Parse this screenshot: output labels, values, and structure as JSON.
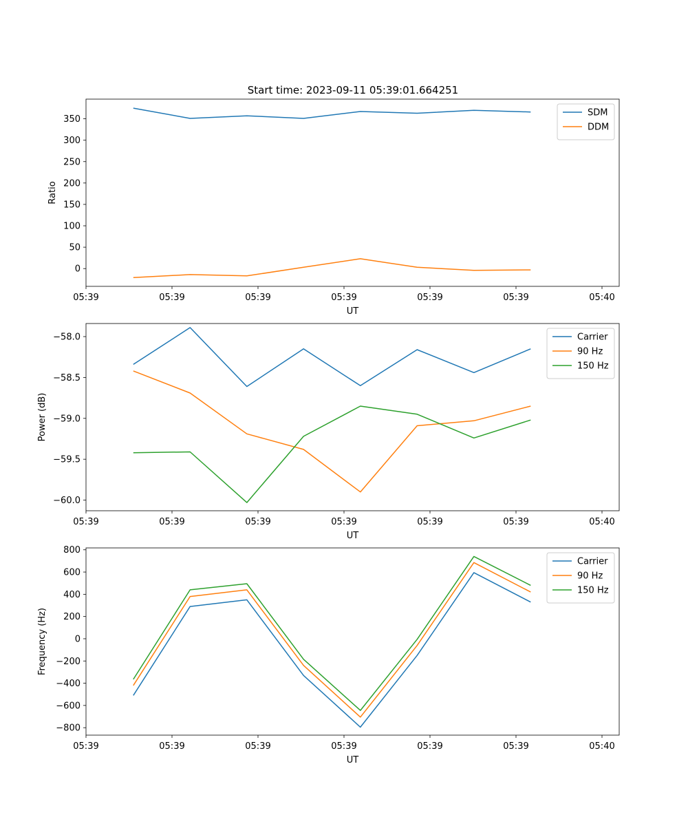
{
  "figure_title": "Start time: 2023-09-11 05:39:01.664251",
  "colors": {
    "blue": "#1f77b4",
    "orange": "#ff7f0e",
    "green": "#2ca02c"
  },
  "chart_data": [
    {
      "type": "line",
      "title": "Start time: 2023-09-11 05:39:01.664251",
      "xlabel": "UT",
      "ylabel": "Ratio",
      "x": [
        0.55,
        1.21,
        1.87,
        2.53,
        3.19,
        3.85,
        4.51,
        5.17
      ],
      "xlim": [
        0,
        6.2
      ],
      "xticks": [
        {
          "value": 0.0,
          "label": "05:39"
        },
        {
          "value": 1.0,
          "label": "05:39"
        },
        {
          "value": 2.0,
          "label": "05:39"
        },
        {
          "value": 3.0,
          "label": "05:39"
        },
        {
          "value": 4.0,
          "label": "05:39"
        },
        {
          "value": 5.0,
          "label": "05:39"
        },
        {
          "value": 6.0,
          "label": "05:40"
        }
      ],
      "ylim": [
        -41.5,
        396
      ],
      "yticks": [
        {
          "value": 0,
          "label": "0"
        },
        {
          "value": 50,
          "label": "50"
        },
        {
          "value": 100,
          "label": "100"
        },
        {
          "value": 150,
          "label": "150"
        },
        {
          "value": 200,
          "label": "200"
        },
        {
          "value": 250,
          "label": "250"
        },
        {
          "value": 300,
          "label": "300"
        },
        {
          "value": 350,
          "label": "350"
        }
      ],
      "legend_position": "top-right",
      "series": [
        {
          "name": "SDM",
          "color": "#1f77b4",
          "values": [
            375,
            351,
            357,
            351,
            367,
            363,
            370,
            366
          ]
        },
        {
          "name": "DDM",
          "color": "#ff7f0e",
          "values": [
            -21,
            -14,
            -17,
            3,
            23,
            3,
            -4,
            -3
          ]
        }
      ]
    },
    {
      "type": "line",
      "xlabel": "UT",
      "ylabel": "Power (dB)",
      "x": [
        0.55,
        1.21,
        1.87,
        2.53,
        3.19,
        3.85,
        4.51,
        5.17
      ],
      "xlim": [
        0,
        6.2
      ],
      "xticks": [
        {
          "value": 0.0,
          "label": "05:39"
        },
        {
          "value": 1.0,
          "label": "05:39"
        },
        {
          "value": 2.0,
          "label": "05:39"
        },
        {
          "value": 3.0,
          "label": "05:39"
        },
        {
          "value": 4.0,
          "label": "05:39"
        },
        {
          "value": 5.0,
          "label": "05:39"
        },
        {
          "value": 6.0,
          "label": "05:40"
        }
      ],
      "ylim": [
        -60.13,
        -57.84
      ],
      "yticks": [
        {
          "value": -60.0,
          "label": "−60.0"
        },
        {
          "value": -59.5,
          "label": "−59.5"
        },
        {
          "value": -59.0,
          "label": "−59.0"
        },
        {
          "value": -58.5,
          "label": "−58.5"
        },
        {
          "value": -58.0,
          "label": "−58.0"
        }
      ],
      "legend_position": "top-right",
      "series": [
        {
          "name": "Carrier",
          "color": "#1f77b4",
          "values": [
            -58.34,
            -57.89,
            -58.61,
            -58.15,
            -58.6,
            -58.16,
            -58.44,
            -58.15
          ]
        },
        {
          "name": "90 Hz",
          "color": "#ff7f0e",
          "values": [
            -58.42,
            -58.69,
            -59.19,
            -59.38,
            -59.9,
            -59.09,
            -59.03,
            -58.85
          ]
        },
        {
          "name": "150 Hz",
          "color": "#2ca02c",
          "values": [
            -59.42,
            -59.41,
            -60.03,
            -59.22,
            -58.85,
            -58.95,
            -59.24,
            -59.02
          ]
        }
      ]
    },
    {
      "type": "line",
      "xlabel": "UT",
      "ylabel": "Frequency (Hz)",
      "x": [
        0.55,
        1.21,
        1.87,
        2.53,
        3.19,
        3.85,
        4.51,
        5.17
      ],
      "xlim": [
        0,
        6.2
      ],
      "xticks": [
        {
          "value": 0.0,
          "label": "05:39"
        },
        {
          "value": 1.0,
          "label": "05:39"
        },
        {
          "value": 2.0,
          "label": "05:39"
        },
        {
          "value": 3.0,
          "label": "05:39"
        },
        {
          "value": 4.0,
          "label": "05:39"
        },
        {
          "value": 5.0,
          "label": "05:39"
        },
        {
          "value": 6.0,
          "label": "05:40"
        }
      ],
      "ylim": [
        -867,
        817
      ],
      "yticks": [
        {
          "value": -800,
          "label": "−800"
        },
        {
          "value": -600,
          "label": "−600"
        },
        {
          "value": -400,
          "label": "−400"
        },
        {
          "value": -200,
          "label": "−200"
        },
        {
          "value": 0,
          "label": "0"
        },
        {
          "value": 200,
          "label": "200"
        },
        {
          "value": 400,
          "label": "400"
        },
        {
          "value": 600,
          "label": "600"
        },
        {
          "value": 800,
          "label": "800"
        }
      ],
      "legend_position": "top-right",
      "series": [
        {
          "name": "Carrier",
          "color": "#1f77b4",
          "values": [
            -510,
            290,
            350,
            -330,
            -795,
            -150,
            595,
            330
          ]
        },
        {
          "name": "90 Hz",
          "color": "#ff7f0e",
          "values": [
            -420,
            380,
            440,
            -240,
            -705,
            -60,
            685,
            420
          ]
        },
        {
          "name": "150 Hz",
          "color": "#2ca02c",
          "values": [
            -365,
            440,
            495,
            -185,
            -645,
            -5,
            740,
            480
          ]
        }
      ]
    }
  ]
}
